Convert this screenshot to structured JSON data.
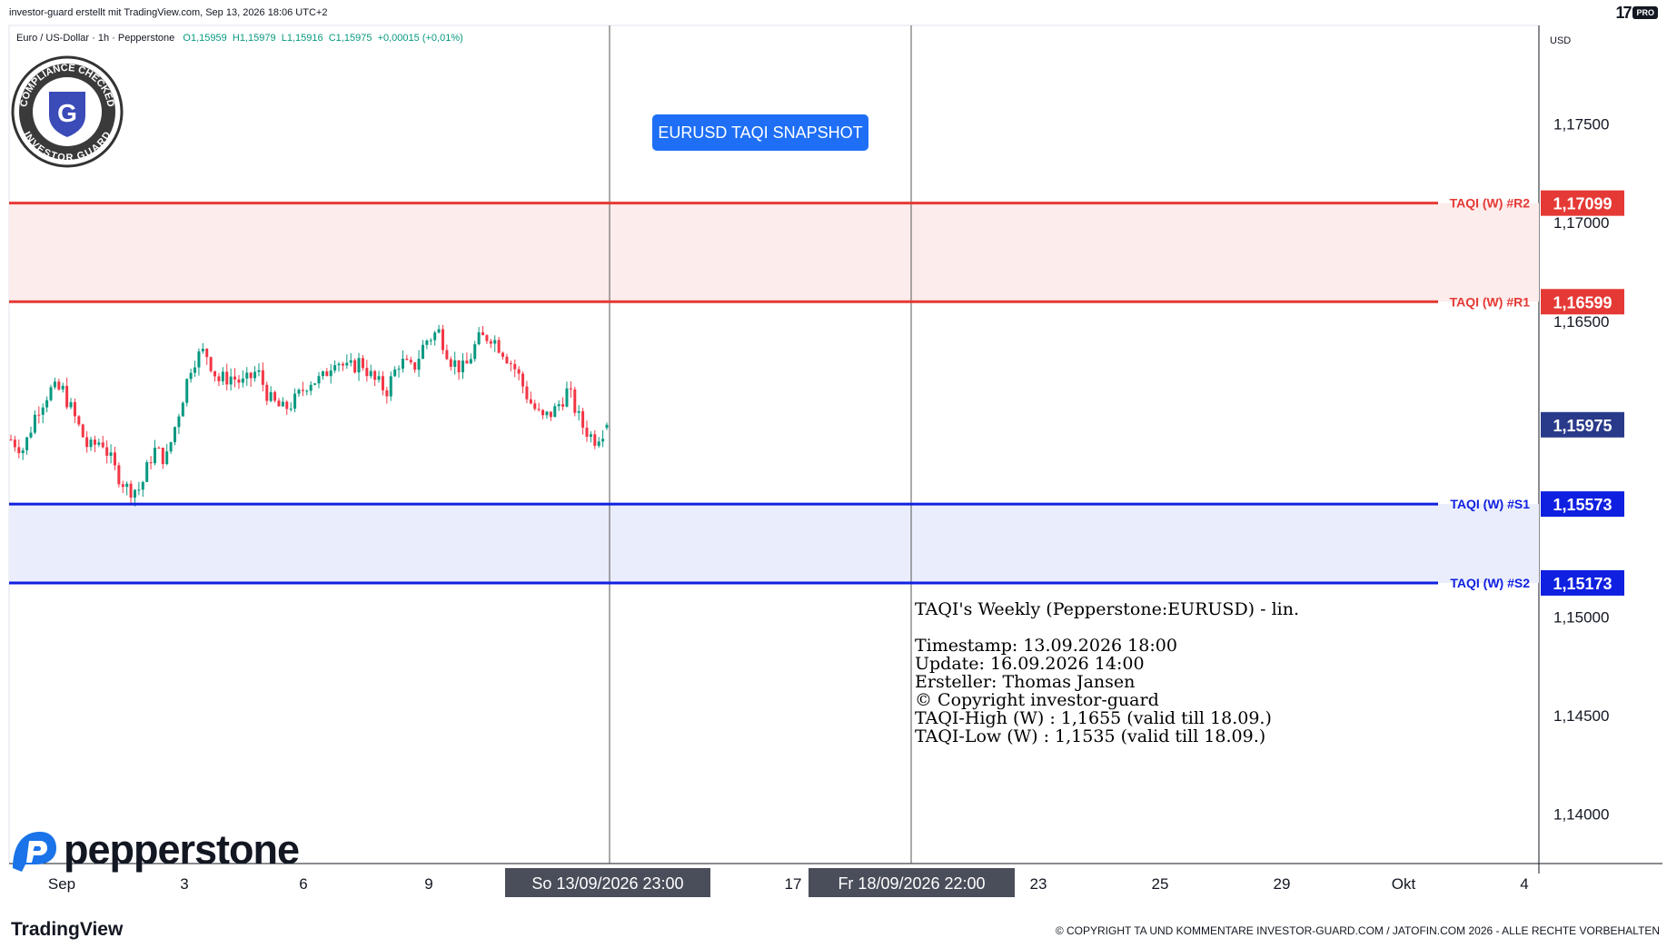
{
  "header": {
    "caption": "investor-guard erstellt mit TradingView.com, Sep 13, 2026 18:06 UTC+2",
    "brand_logo": "17",
    "brand_badge": "PRO"
  },
  "symbol_info": {
    "name": "Euro / US-Dollar · 1h · Pepperstone",
    "open": "O1,15959",
    "high": "H1,15979",
    "low": "L1,15916",
    "close": "C1,15975",
    "change": "+0,00015 (+0,01%)"
  },
  "snapshot_badge": "EURUSD TAQI SNAPSHOT",
  "compliance_seal": {
    "top_text": "COMPLIANCE CHECKED",
    "bottom_text": "INVESTOR GUARD",
    "letter": "G"
  },
  "annotation": {
    "title": "TAQI's Weekly (Pepperstone:EURUSD) - lin.",
    "lines": [
      "Timestamp: 13.09.2026 18:00",
      "Update: 16.09.2026 14:00",
      "Ersteller: Thomas Jansen",
      "© Copyright investor-guard",
      "TAQI-High (W) : 1,1655 (valid till 18.09.)",
      "TAQI-Low (W) : 1,1535 (valid till 18.09.)"
    ]
  },
  "watermark": "pepperstone",
  "footer": {
    "brand": "TradingView",
    "copyright": "© COPYRIGHT TA UND KOMMENTARE INVESTOR-GUARD.COM / JATOFIN.COM 2026 - ALLE RECHTE VORBEHALTEN"
  },
  "chart_data": {
    "type": "candlestick",
    "currency": "USD",
    "ylim": [
      1.1375,
      1.18
    ],
    "y_ticks": [
      "1,17500",
      "1,17000",
      "1,16500",
      "1,15000",
      "1,14500",
      "1,14000"
    ],
    "x_ticks": [
      "Sep",
      "3",
      "6",
      "9",
      "17",
      "23",
      "25",
      "29",
      "Okt",
      "4"
    ],
    "crosshair_labels": [
      "So 13/09/2026   23:00",
      "Fr 18/09/2026   22:00"
    ],
    "current_price": "1,15975",
    "levels": [
      {
        "name": "TAQI (W) #R2",
        "value": 1.17099,
        "label": "1,17099",
        "color": "#e53935"
      },
      {
        "name": "TAQI (W) #R1",
        "value": 1.16599,
        "label": "1,16599",
        "color": "#e53935"
      },
      {
        "name": "TAQI (W) #S1",
        "value": 1.15573,
        "label": "1,15573",
        "color": "#1020e0"
      },
      {
        "name": "TAQI (W) #S2",
        "value": 1.15173,
        "label": "1,15173",
        "color": "#1020e0"
      }
    ],
    "resistance_zone": [
      1.16599,
      1.17099
    ],
    "support_zone": [
      1.15173,
      1.15573
    ],
    "colors": {
      "up": "#089981",
      "down": "#f23645",
      "current": "#2a3a8a"
    },
    "price_path": [
      1.159,
      1.1585,
      1.1605,
      1.1615,
      1.1615,
      1.16,
      1.1585,
      1.159,
      1.1575,
      1.1565,
      1.1565,
      1.1585,
      1.158,
      1.1605,
      1.163,
      1.1635,
      1.162,
      1.1622,
      1.1618,
      1.1625,
      1.161,
      1.1605,
      1.161,
      1.162,
      1.162,
      1.1632,
      1.1625,
      1.163,
      1.162,
      1.1615,
      1.163,
      1.1625,
      1.164,
      1.1645,
      1.163,
      1.1625,
      1.164,
      1.1643,
      1.1635,
      1.1625,
      1.161,
      1.16,
      1.1605,
      1.1615,
      1.1598,
      1.159,
      1.1597
    ]
  }
}
